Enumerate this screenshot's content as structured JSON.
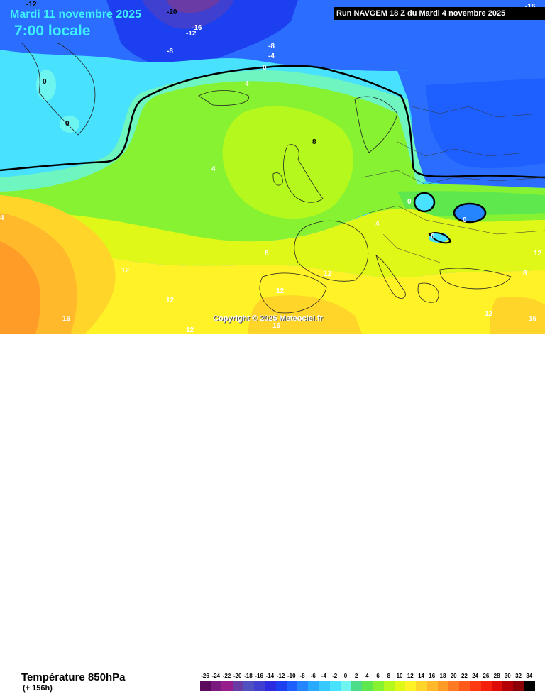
{
  "header": {
    "date": "Mardi 11 novembre 2025",
    "time": "7:00 locale",
    "run": "Run NAVGEM 18 Z du Mardi 4 novembre 2025"
  },
  "copyright": "Copyright © 2025 Meteociel.fr",
  "footer": {
    "title": "Température 850hPa",
    "subtitle": "(+ 156h)"
  },
  "legend": {
    "values": [
      "-26",
      "-24",
      "-22",
      "-20",
      "-18",
      "-16",
      "-14",
      "-12",
      "-10",
      "-8",
      "-6",
      "-4",
      "-2",
      "0",
      "2",
      "4",
      "6",
      "8",
      "10",
      "12",
      "14",
      "16",
      "18",
      "20",
      "22",
      "24",
      "26",
      "28",
      "30",
      "32",
      "34"
    ],
    "colors": [
      "#5b0a5e",
      "#7a1a7e",
      "#961e8c",
      "#6a3aa5",
      "#5050c0",
      "#3f3fd0",
      "#2b2bdf",
      "#1c3ff0",
      "#1e60ff",
      "#2585ff",
      "#28aaff",
      "#36c8ff",
      "#48e2ff",
      "#6ef5f0",
      "#4ddc8a",
      "#5fe84e",
      "#86f232",
      "#b4f81e",
      "#e0f818",
      "#fff226",
      "#ffd52a",
      "#ffb92b",
      "#ff9c28",
      "#ff7a22",
      "#ff5a1a",
      "#ff3a12",
      "#f5200c",
      "#de0c08",
      "#b40005",
      "#8a0004",
      "#000000"
    ]
  },
  "map_labels": {
    "lbl_m12_top": "-12",
    "lbl_m20": "-20",
    "lbl_m16": "-16",
    "lbl_m12b": "-12",
    "lbl_m8a": "-8",
    "lbl_m8b": "-8",
    "lbl_m4": "-4",
    "lbl_0a": "0",
    "lbl_0green": "0",
    "lbl_0green2": "0",
    "lbl_4a": "4",
    "lbl_8uk": "8",
    "lbl_4b": "4",
    "lbl_0c": "0",
    "lbl_0d": "0",
    "lbl_0e": "0",
    "lbl_4c": "4",
    "lbl_8a": "8",
    "lbl_12a": "12",
    "lbl_12b": "12",
    "lbl_12c": "12",
    "lbl_12d": "12",
    "lbl_12e": "12",
    "lbl_12f": "12",
    "lbl_12g": "12",
    "lbl_16a": "16",
    "lbl_16b": "16",
    "lbl_16c": "16",
    "lbl_8b": "8",
    "lbl_4d": "4",
    "lbl_16top": "-16"
  }
}
